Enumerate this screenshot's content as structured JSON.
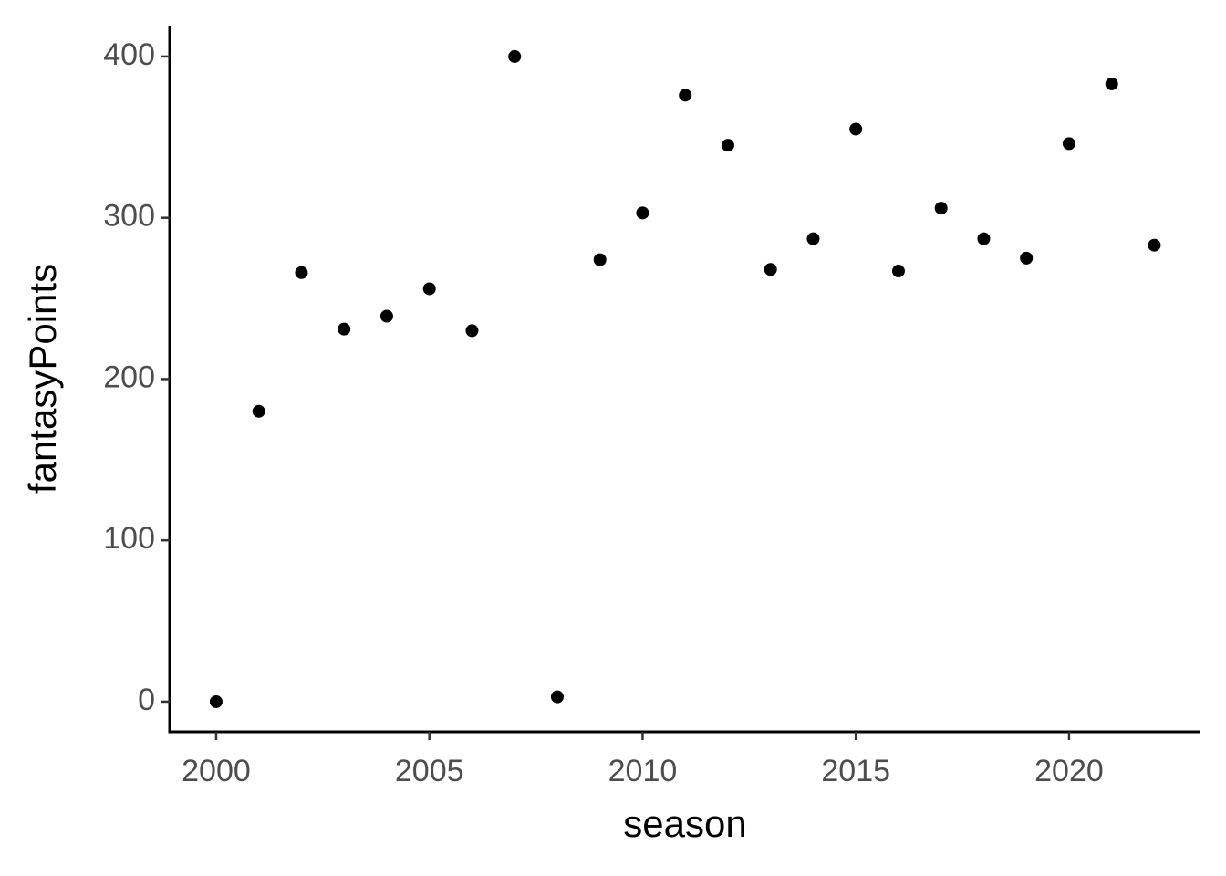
{
  "chart_data": {
    "type": "scatter",
    "x_label": "season",
    "y_label": "fantasyPoints",
    "x": [
      2000,
      2001,
      2002,
      2003,
      2004,
      2005,
      2006,
      2007,
      2008,
      2009,
      2010,
      2011,
      2012,
      2013,
      2014,
      2015,
      2016,
      2017,
      2018,
      2019,
      2020,
      2021,
      2022
    ],
    "values": [
      0,
      180,
      266,
      231,
      239,
      256,
      230,
      400,
      3,
      274,
      303,
      376,
      345,
      268,
      287,
      355,
      267,
      306,
      287,
      275,
      346,
      383,
      283
    ],
    "color": "#000000",
    "xlim": [
      1998.91,
      2023.06
    ],
    "ylim": [
      -18.7,
      419.2
    ],
    "xticks": [
      2000,
      2005,
      2010,
      2015,
      2020
    ],
    "yticks": [
      0,
      100,
      200,
      300,
      400
    ],
    "grid": false
  }
}
